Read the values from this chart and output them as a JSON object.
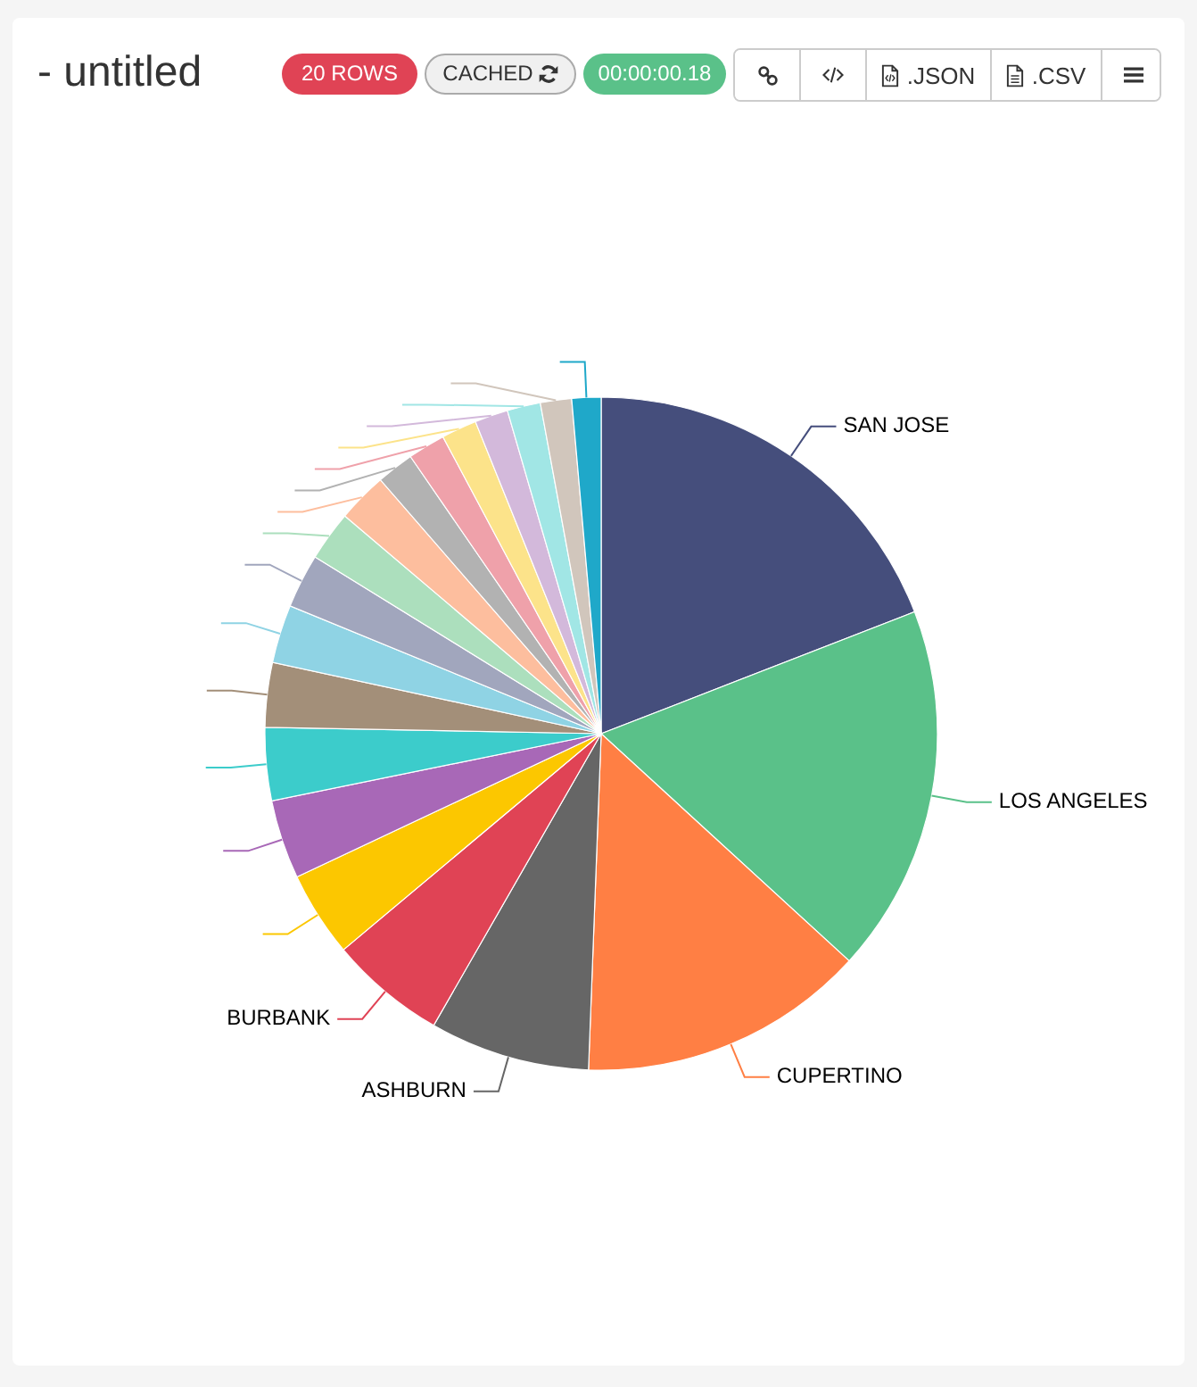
{
  "chart_data": {
    "type": "pie",
    "title": "- untitled",
    "categories": [
      "SAN JOSE",
      "LOS ANGELES",
      "CUPERTINO",
      "ASHBURN",
      "BURBANK",
      null,
      null,
      null,
      null,
      null,
      null,
      null,
      null,
      null,
      null,
      null,
      null,
      null,
      null,
      null
    ],
    "values": [
      19.1,
      17.7,
      13.8,
      7.7,
      5.6,
      4.1,
      3.8,
      3.5,
      3.1,
      2.8,
      2.6,
      2.4,
      2.4,
      1.8,
      1.8,
      1.7,
      1.6,
      1.6,
      1.5,
      1.4
    ],
    "colors": [
      "#454e7c",
      "#5ac189",
      "#ff7f44",
      "#666666",
      "#e04355",
      "#fcc700",
      "#a868b7",
      "#3ccccb",
      "#a38f79",
      "#8fd3e4",
      "#a1a6bd",
      "#acdfbd",
      "#fdbe9e",
      "#b2b2b2",
      "#efa1aa",
      "#fce38a",
      "#d3b9db",
      "#a1e6e5",
      "#d1c6bc",
      "#1fa8c9"
    ],
    "annotations": [
      "20 ROWS",
      "CACHED",
      "00:00:00.18",
      ".JSON",
      ".CSV"
    ]
  }
}
